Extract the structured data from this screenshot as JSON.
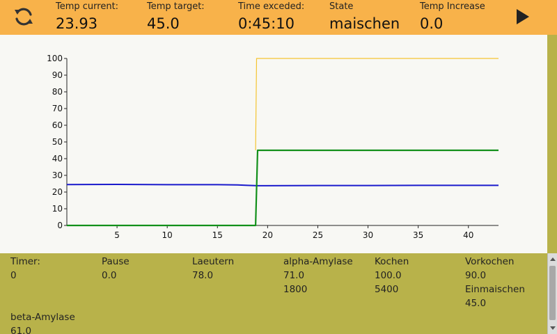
{
  "header": {
    "temp_current": {
      "label": "Temp current:",
      "value": "23.93"
    },
    "temp_target": {
      "label": "Temp target:",
      "value": "45.0"
    },
    "time_exceeded": {
      "label": "Time exceded:",
      "value": "0:45:10"
    },
    "state": {
      "label": "State",
      "value": "maischen"
    },
    "temp_increase": {
      "label": "Temp Increase",
      "value": "0.0"
    }
  },
  "colors": {
    "header_bg": "#f8b24a",
    "panel_bg": "#b8b24a",
    "series_current": "#1a1acc",
    "series_target": "#12901a",
    "series_setpoint": "#f4c430"
  },
  "icons": {
    "refresh": "refresh-icon",
    "play": "play-icon"
  },
  "chart_data": {
    "type": "line",
    "xlim": [
      0,
      43
    ],
    "ylim": [
      0,
      100
    ],
    "x_ticks": [
      5,
      10,
      15,
      20,
      25,
      30,
      35,
      40
    ],
    "y_ticks": [
      0,
      10,
      20,
      30,
      40,
      50,
      60,
      70,
      80,
      90,
      100
    ],
    "grid": false,
    "series": [
      {
        "key": "current",
        "x": [
          0,
          5,
          10,
          15,
          17,
          18,
          19,
          25,
          30,
          35,
          40,
          43
        ],
        "y": [
          24.5,
          24.6,
          24.4,
          24.4,
          24.3,
          24.0,
          23.8,
          23.9,
          23.9,
          24.0,
          24.0,
          24.0
        ]
      },
      {
        "key": "target",
        "x": [
          0,
          18.8,
          19.0,
          43
        ],
        "y": [
          0,
          0,
          45,
          45
        ]
      },
      {
        "key": "setpoint",
        "x": [
          18.8,
          18.9,
          43
        ],
        "y": [
          45,
          100,
          100
        ]
      }
    ]
  },
  "steps": [
    {
      "name": "Timer:",
      "lines": [
        "0"
      ]
    },
    {
      "name": "Pause",
      "lines": [
        "0.0"
      ]
    },
    {
      "name": "Laeutern",
      "lines": [
        "78.0"
      ]
    },
    {
      "name": "alpha-Amylase",
      "lines": [
        "71.0",
        "1800"
      ]
    },
    {
      "name": "Kochen",
      "lines": [
        "100.0",
        "5400"
      ]
    },
    {
      "name": "Vorkochen",
      "lines": [
        "90.0"
      ]
    },
    {
      "name": "Einmaischen",
      "lines": [
        "45.0"
      ]
    },
    {
      "name": "beta-Amylase",
      "lines": [
        "61.0"
      ]
    }
  ]
}
